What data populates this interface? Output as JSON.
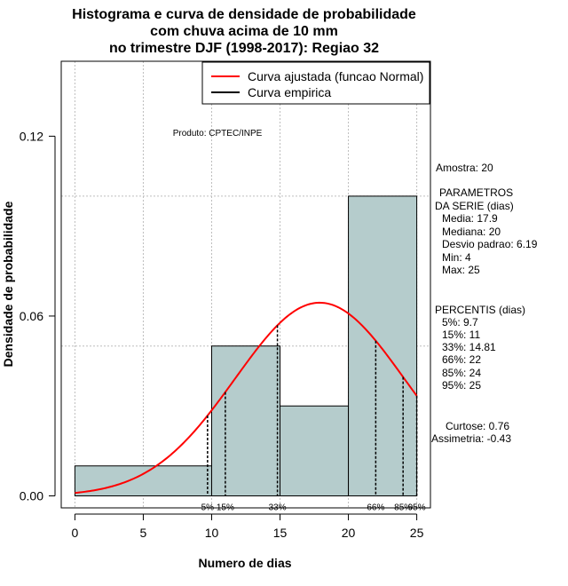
{
  "chart_data": {
    "type": "histogram",
    "title_lines": [
      "Histograma e curva de densidade de probabilidade",
      "com chuva acima de 10 mm",
      "no trimestre DJF (1998-2017): Regiao 32"
    ],
    "xlabel": "Numero de dias",
    "ylabel": "Densidade de probabilidade",
    "xlim": [
      -1,
      26
    ],
    "ylim": [
      -0.004,
      0.145
    ],
    "x_ticks": [
      0,
      5,
      10,
      15,
      20,
      25
    ],
    "y_ticks": [
      {
        "value": 0.0,
        "label": "0.00"
      },
      {
        "value": 0.06,
        "label": "0.06"
      },
      {
        "value": 0.12,
        "label": "0.12"
      }
    ],
    "x_grid": [
      0,
      5,
      10,
      15,
      20,
      25
    ],
    "y_grid": [
      0.05,
      0.1
    ],
    "bins": [
      {
        "start": 0,
        "end": 10,
        "density": 0.01
      },
      {
        "start": 10,
        "end": 15,
        "density": 0.05
      },
      {
        "start": 15,
        "end": 20,
        "density": 0.03
      },
      {
        "start": 20,
        "end": 25,
        "density": 0.1
      }
    ],
    "normal_fit": {
      "mean": 17.9,
      "sd": 6.19,
      "x_range": [
        0,
        25
      ],
      "color": "#ff0000"
    },
    "bar_fill": "#b5cccc",
    "percentile_markers": [
      {
        "label": "5%",
        "x": 9.7
      },
      {
        "label": "15%",
        "x": 11
      },
      {
        "label": "33%",
        "x": 14.81
      },
      {
        "label": "66%",
        "x": 22
      },
      {
        "label": "85%",
        "x": 24
      },
      {
        "label": "95%",
        "x": 25
      }
    ],
    "legend": {
      "position": "top-right",
      "entries": [
        {
          "label": "Curva ajustada (funcao Normal)",
          "color": "#ff0000"
        },
        {
          "label": "Curva empirica",
          "color": "#000000"
        }
      ]
    },
    "annotation": "Produto: CPTEC/INPE"
  },
  "stats_panel": {
    "lines": [
      "Amostra: 20",
      "PARAMETROS",
      "DA SERIE (dias)",
      "Media: 17.9",
      "Mediana: 20",
      "Desvio padrao: 6.19",
      "Min: 4",
      "Max: 25",
      "PERCENTIS (dias)",
      "5%: 9.7",
      "15%: 11",
      "33%: 14.81",
      "66%: 22",
      "85%: 24",
      "95%: 25",
      "Curtose: 0.76",
      "Assimetria: -0.43"
    ]
  }
}
